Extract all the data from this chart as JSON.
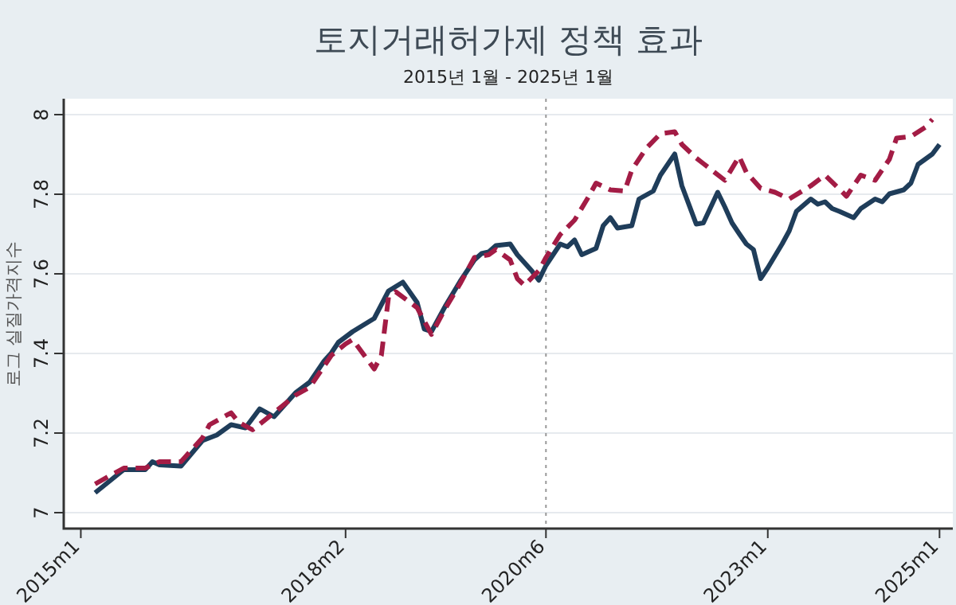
{
  "chart_data": {
    "type": "line",
    "title": "토지거래허가제 정책 효과",
    "subtitle": "2015년 1월 - 2025년 1월",
    "ylabel": "로그 실질가격지수",
    "xlim": [
      "2014-10-20",
      "2025-02-25"
    ],
    "ylim": [
      6.96,
      8.04
    ],
    "xticks": [
      {
        "value": "2015-01",
        "label": "2015m1"
      },
      {
        "value": "2018-02",
        "label": "2018m2"
      },
      {
        "value": "2020-06",
        "label": "2020m6"
      },
      {
        "value": "2023-01",
        "label": "2023m1"
      },
      {
        "value": "2025-01",
        "label": "2025m1"
      }
    ],
    "yticks": [
      7,
      7.2,
      7.4,
      7.6,
      7.8,
      8
    ],
    "grid": "y",
    "ref_lines": [
      {
        "axis": "x",
        "value": "2020-06",
        "color": "#999999",
        "line_style": "dotted"
      }
    ],
    "series": [
      {
        "color": "#1f3d5a",
        "line_style": "solid",
        "x": [
          "2015-03",
          "2015-07",
          "2015-10",
          "2015-11",
          "2015-12",
          "2016-03",
          "2016-06",
          "2016-08",
          "2016-10",
          "2016-12",
          "2017-02",
          "2017-04",
          "2017-07",
          "2017-09",
          "2017-11",
          "2017-12",
          "2018-01",
          "2018-03",
          "2018-06",
          "2018-08",
          "2018-10",
          "2018-12",
          "2019-01",
          "2019-02",
          "2019-04",
          "2019-06",
          "2019-08",
          "2019-09",
          "2019-10",
          "2019-11",
          "2020-01",
          "2020-02",
          "2020-04",
          "2020-05",
          "2020-06",
          "2020-08",
          "2020-09",
          "2020-10",
          "2020-11",
          "2021-01",
          "2021-02",
          "2021-03",
          "2021-04",
          "2021-06",
          "2021-07",
          "2021-09",
          "2021-10",
          "2021-12",
          "2022-01",
          "2022-03",
          "2022-04",
          "2022-06",
          "2022-07",
          "2022-08",
          "2022-09",
          "2022-10",
          "2022-11",
          "2022-12",
          "2023-01",
          "2023-03",
          "2023-04",
          "2023-05",
          "2023-07",
          "2023-08",
          "2023-09",
          "2023-10",
          "2023-11",
          "2024-01",
          "2024-02",
          "2024-04",
          "2024-05",
          "2024-06",
          "2024-08",
          "2024-09",
          "2024-10",
          "2024-12",
          "2025-01"
        ],
        "values": [
          7.05,
          7.108,
          7.108,
          7.128,
          7.12,
          7.117,
          7.181,
          7.195,
          7.221,
          7.213,
          7.261,
          7.241,
          7.301,
          7.328,
          7.381,
          7.401,
          7.428,
          7.455,
          7.488,
          7.557,
          7.579,
          7.528,
          7.461,
          7.455,
          7.521,
          7.581,
          7.635,
          7.651,
          7.655,
          7.671,
          7.675,
          7.648,
          7.608,
          7.584,
          7.621,
          7.675,
          7.668,
          7.685,
          7.648,
          7.664,
          7.721,
          7.741,
          7.715,
          7.721,
          7.788,
          7.808,
          7.848,
          7.901,
          7.821,
          7.725,
          7.728,
          7.805,
          7.768,
          7.728,
          7.701,
          7.675,
          7.661,
          7.588,
          7.615,
          7.675,
          7.708,
          7.757,
          7.788,
          7.775,
          7.781,
          7.764,
          7.757,
          7.741,
          7.764,
          7.788,
          7.781,
          7.801,
          7.811,
          7.828,
          7.875,
          7.901,
          7.925
        ]
      },
      {
        "color": "#a31c45",
        "line_style": "dashed",
        "x": [
          "2015-03",
          "2015-07",
          "2015-10",
          "2015-12",
          "2016-03",
          "2016-06",
          "2016-07",
          "2016-10",
          "2016-11",
          "2017-01",
          "2017-04",
          "2017-07",
          "2017-09",
          "2017-12",
          "2018-02",
          "2018-03",
          "2018-06",
          "2018-07",
          "2018-08",
          "2018-09",
          "2018-12",
          "2019-02",
          "2019-04",
          "2019-06",
          "2019-08",
          "2019-10",
          "2019-11",
          "2020-01",
          "2020-02",
          "2020-03",
          "2020-05",
          "2020-06",
          "2020-08",
          "2020-10",
          "2020-12",
          "2021-01",
          "2021-03",
          "2021-05",
          "2021-06",
          "2021-08",
          "2021-10",
          "2021-12",
          "2022-01",
          "2022-03",
          "2022-04",
          "2022-07",
          "2022-09",
          "2022-10",
          "2022-12",
          "2023-02",
          "2023-04",
          "2023-07",
          "2023-09",
          "2023-12",
          "2024-02",
          "2024-04",
          "2024-06",
          "2024-07",
          "2024-09",
          "2024-11",
          "2024-12"
        ],
        "values": [
          7.072,
          7.112,
          7.112,
          7.128,
          7.128,
          7.188,
          7.221,
          7.251,
          7.228,
          7.208,
          7.251,
          7.295,
          7.315,
          7.395,
          7.424,
          7.435,
          7.361,
          7.395,
          7.541,
          7.555,
          7.515,
          7.448,
          7.515,
          7.575,
          7.641,
          7.648,
          7.661,
          7.635,
          7.588,
          7.571,
          7.608,
          7.641,
          7.699,
          7.735,
          7.795,
          7.828,
          7.811,
          7.808,
          7.861,
          7.915,
          7.952,
          7.957,
          7.925,
          7.891,
          7.877,
          7.835,
          7.895,
          7.855,
          7.815,
          7.805,
          7.788,
          7.821,
          7.848,
          7.795,
          7.848,
          7.835,
          7.888,
          7.941,
          7.945,
          7.968,
          7.988
        ]
      }
    ]
  }
}
